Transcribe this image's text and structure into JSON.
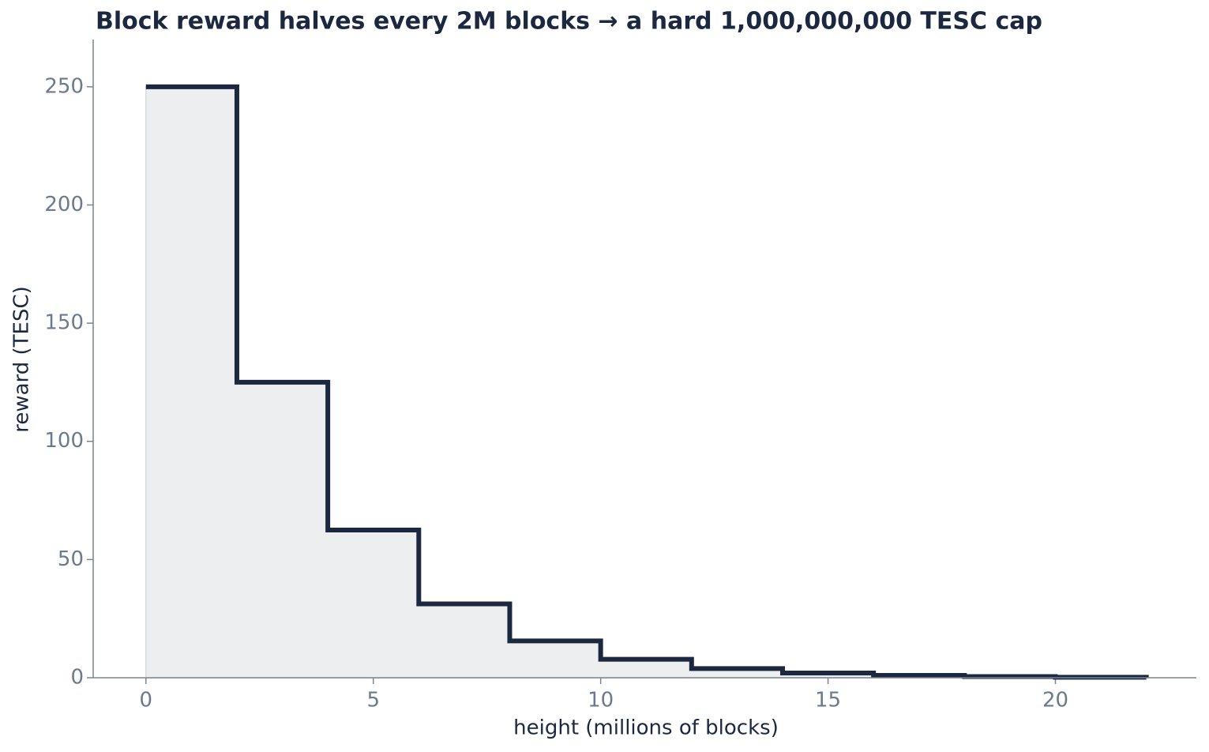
{
  "chart_data": {
    "type": "line",
    "step": "post",
    "title": "Block reward halves every 2M blocks → a hard 1,000,000,000 TESC cap",
    "x_label": "height (millions of blocks)",
    "y_label": "reward (TESC)",
    "x": [
      0,
      2,
      4,
      6,
      8,
      10,
      12,
      14,
      16,
      18,
      20,
      22
    ],
    "series": [
      {
        "name": "reward",
        "color": "#1b2840",
        "fill": "#eceef0",
        "values": [
          250,
          125,
          62.5,
          31.25,
          15.6,
          7.8,
          3.9,
          2.0,
          1.0,
          0.5,
          0.2,
          0.1
        ]
      }
    ],
    "xlim": [
      -1.16,
      23.1
    ],
    "ylim": [
      0,
      270
    ],
    "xticks": [
      0,
      5,
      10,
      15,
      20
    ],
    "yticks": [
      0,
      50,
      100,
      150,
      200,
      250
    ]
  }
}
